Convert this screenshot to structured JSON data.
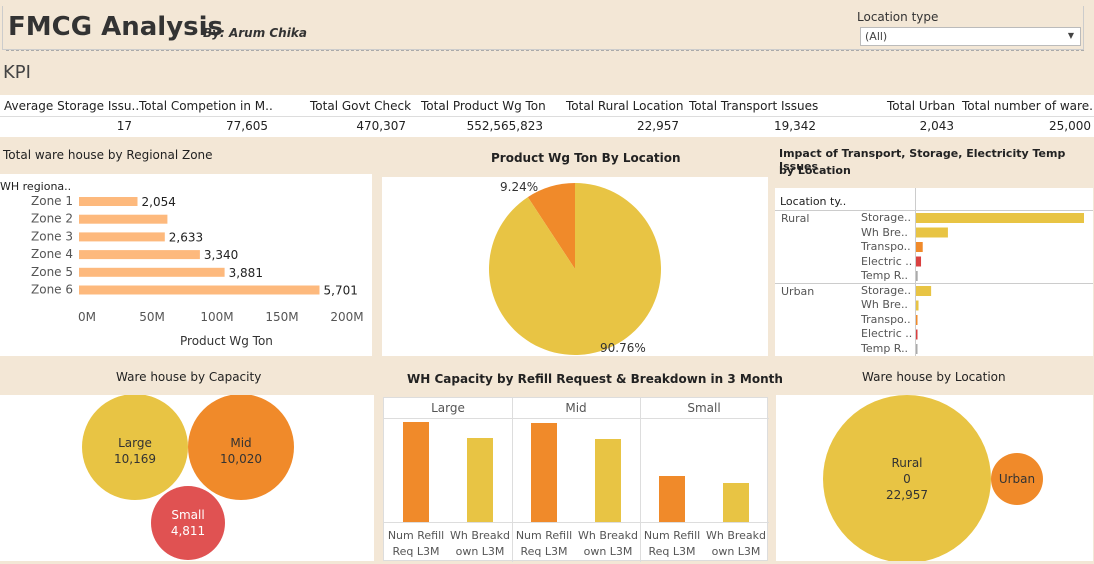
{
  "header": {
    "title": "FMCG Analysis",
    "byline": "By: Arum Chika",
    "filter_label": "Location type",
    "filter_value": "(All)"
  },
  "kpi": {
    "title": "KPI",
    "columns": [
      {
        "label": "Average Storage Issu..",
        "value": "17"
      },
      {
        "label": "Total  Competion in M..",
        "value": "77,605"
      },
      {
        "label": "Total Govt Check",
        "value": "470,307"
      },
      {
        "label": "Total Product Wg Ton",
        "value": "552,565,823"
      },
      {
        "label": "Total Rural Location",
        "value": "22,957"
      },
      {
        "label": "Total Transport Issues",
        "value": "19,342"
      },
      {
        "label": "Total Urban",
        "value": "2,043"
      },
      {
        "label": "Total number of ware..",
        "value": "25,000"
      }
    ]
  },
  "regional": {
    "title": "Total ware house by Regional Zone",
    "dim_label": "WH regiona..",
    "xlabel": "Product Wg Ton",
    "ticks": [
      "0M",
      "50M",
      "100M",
      "150M",
      "200M"
    ]
  },
  "pie": {
    "title": "Product Wg Ton By Location",
    "labels": [
      "9.24%",
      "90.76%"
    ]
  },
  "impact": {
    "title_line1": "Impact of Transport, Storage, Electricity Temp Issues",
    "title_line2": "by Location",
    "dim_label": "Location ty..",
    "groups": [
      "Rural",
      "Urban"
    ],
    "issues": [
      "Storage..",
      "Wh Bre..",
      "Transpo..",
      "Electric ..",
      "Temp R.."
    ]
  },
  "capacity": {
    "title": "Ware house by Capacity",
    "bubbles": [
      {
        "name": "Large",
        "value": "10,169",
        "color": "#e8c444"
      },
      {
        "name": "Mid",
        "value": "10,020",
        "color": "#f08a2a"
      },
      {
        "name": "Small",
        "value": "4,811",
        "color": "#e05252"
      }
    ]
  },
  "refill": {
    "title": "WH Capacity by Refill Request & Breakdown in 3 Month",
    "panes": [
      "Large",
      "Mid",
      "Small"
    ],
    "measure_labels": [
      [
        "Num Refill",
        "Req L3M"
      ],
      [
        "Wh Breakd",
        "own L3M"
      ]
    ]
  },
  "location": {
    "title": "Ware house by Location",
    "rural_name": "Rural",
    "rural_zero": "0",
    "rural_value": "22,957",
    "urban_name": "Urban",
    "rural_color": "#e8c444",
    "urban_color": "#f08a2a"
  },
  "chart_data": [
    {
      "type": "bar",
      "title": "Total ware house by Regional Zone",
      "xlabel": "Product Wg Ton",
      "categories": [
        "Zone 1",
        "Zone 2",
        "Zone 3",
        "Zone 4",
        "Zone 5",
        "Zone 6"
      ],
      "values": [
        45000000,
        68000000,
        66000000,
        93000000,
        112000000,
        185000000
      ],
      "data_labels": [
        "2,054",
        "",
        "2,633",
        "3,340",
        "3,881",
        "5,701"
      ],
      "xlim": [
        0,
        200000000
      ],
      "color": "#fdb97d"
    },
    {
      "type": "pie",
      "title": "Product Wg Ton By Location",
      "categories": [
        "Urban",
        "Rural"
      ],
      "values": [
        9.24,
        90.76
      ],
      "colors": [
        "#f08a2a",
        "#e8c444"
      ]
    },
    {
      "type": "bar",
      "title": "Impact of Transport, Storage, Electricity Temp Issues by Location",
      "series": [
        {
          "name": "Rural",
          "values": [
            100,
            19,
            4,
            3,
            1
          ]
        },
        {
          "name": "Urban",
          "values": [
            9,
            1.5,
            0.3,
            0.2,
            0.1
          ]
        }
      ],
      "categories": [
        "Storage..",
        "Wh Bre..",
        "Transpo..",
        "Electric ..",
        "Temp R.."
      ],
      "colors": [
        "#e8c444",
        "#e8c444",
        "#f08a2a",
        "#d94040",
        "#aaaaaa"
      ]
    },
    {
      "type": "bar",
      "title": "WH Capacity by Refill Request & Breakdown in 3 Month",
      "categories": [
        "Large",
        "Mid",
        "Small"
      ],
      "series": [
        {
          "name": "Num Refill Req L3M",
          "values": [
            100,
            99,
            46
          ],
          "color": "#f08a2a"
        },
        {
          "name": "Wh Breakdown L3M",
          "values": [
            84,
            83,
            39
          ],
          "color": "#e8c444"
        }
      ]
    }
  ]
}
